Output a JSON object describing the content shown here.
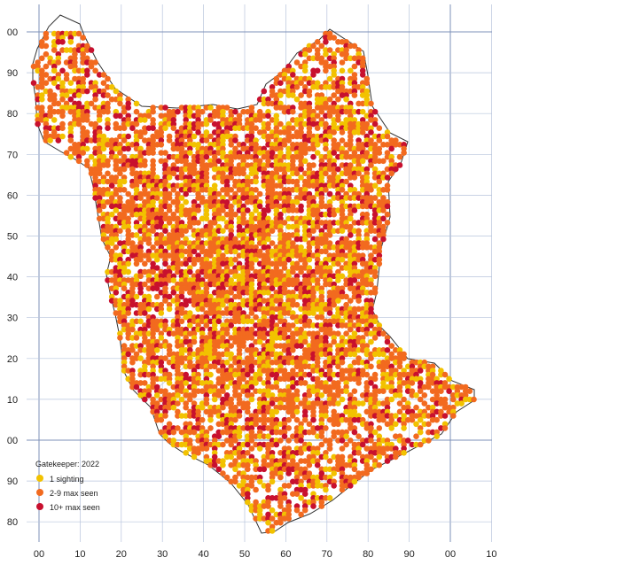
{
  "map": {
    "legend": {
      "title": "Gatekeeper:  2022",
      "items": [
        {
          "label": "1 sighting",
          "color": "#f2c200"
        },
        {
          "label": "2-9 max seen",
          "color": "#f26a1f"
        },
        {
          "label": "10+ max seen",
          "color": "#c8102e"
        }
      ]
    },
    "x_axis_labels": [
      "00",
      "10",
      "20",
      "30",
      "40",
      "50",
      "60",
      "70",
      "80",
      "90",
      "00",
      "10"
    ],
    "y_axis_labels": [
      "00",
      "90",
      "80",
      "70",
      "60",
      "50",
      "40",
      "30",
      "20",
      "10",
      "00",
      "90",
      "80"
    ],
    "colors": {
      "grid": "#b7c4dc",
      "major_grid": "#7e90b8",
      "border": "#333333"
    },
    "marker_colors": [
      "#f2c200",
      "#f26a1f",
      "#c8102e"
    ]
  }
}
